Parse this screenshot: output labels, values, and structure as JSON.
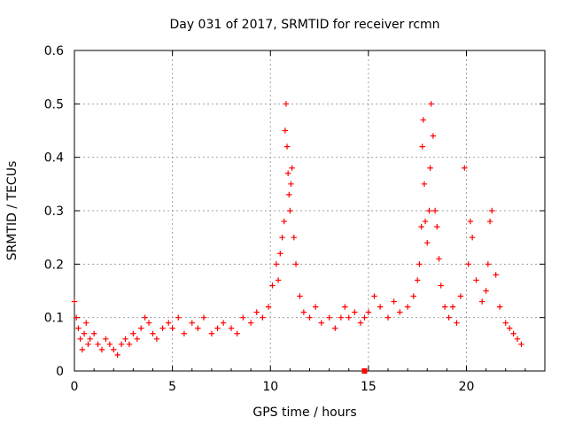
{
  "chart_data": {
    "type": "scatter",
    "title": "Day 031 of 2017, SRMTID for receiver rcmn",
    "xlabel": "GPS time / hours",
    "ylabel": "SRMTID / TECUs",
    "xlim": [
      0,
      24
    ],
    "ylim": [
      0,
      0.6
    ],
    "xticks": [
      0,
      5,
      10,
      15,
      20
    ],
    "xtick_labels": [
      "0",
      "5",
      "10",
      "15",
      "20"
    ],
    "yticks": [
      0,
      0.1,
      0.2,
      0.3,
      0.4,
      0.5,
      0.6
    ],
    "ytick_labels": [
      "0",
      "0.1",
      "0.2",
      "0.3",
      "0.4",
      "0.5",
      "0.6"
    ],
    "grid": true,
    "marker": "plus",
    "color": "#ff0000",
    "series": [
      {
        "name": "SRMTID",
        "x": [
          0.0,
          0.1,
          0.2,
          0.3,
          0.4,
          0.5,
          0.6,
          0.7,
          0.8,
          1.0,
          1.2,
          1.4,
          1.6,
          1.8,
          2.0,
          2.2,
          2.4,
          2.6,
          2.8,
          3.0,
          3.2,
          3.4,
          3.6,
          3.8,
          4.0,
          4.2,
          4.5,
          4.8,
          5.0,
          5.3,
          5.6,
          6.0,
          6.3,
          6.6,
          7.0,
          7.3,
          7.6,
          8.0,
          8.3,
          8.6,
          9.0,
          9.3,
          9.6,
          9.9,
          10.1,
          10.3,
          10.4,
          10.5,
          10.6,
          10.7,
          10.75,
          10.8,
          10.85,
          10.9,
          10.95,
          11.0,
          11.05,
          11.1,
          11.2,
          11.3,
          11.5,
          11.7,
          12.0,
          12.3,
          12.6,
          13.0,
          13.3,
          13.6,
          13.8,
          14.0,
          14.3,
          14.6,
          14.8,
          15.0,
          15.3,
          15.6,
          16.0,
          16.3,
          16.6,
          17.0,
          17.3,
          17.5,
          17.6,
          17.7,
          17.75,
          17.8,
          17.85,
          17.9,
          18.0,
          18.1,
          18.15,
          18.2,
          18.3,
          18.4,
          18.5,
          18.6,
          18.7,
          18.9,
          19.1,
          19.3,
          19.5,
          19.7,
          19.9,
          20.1,
          20.2,
          20.3,
          20.5,
          20.8,
          21.0,
          21.1,
          21.2,
          21.3,
          21.5,
          21.7,
          22.0,
          22.2,
          22.4,
          22.6,
          22.8
        ],
        "y": [
          0.13,
          0.1,
          0.08,
          0.06,
          0.04,
          0.07,
          0.09,
          0.05,
          0.06,
          0.07,
          0.05,
          0.04,
          0.06,
          0.05,
          0.04,
          0.03,
          0.05,
          0.06,
          0.05,
          0.07,
          0.06,
          0.08,
          0.1,
          0.09,
          0.07,
          0.06,
          0.08,
          0.09,
          0.08,
          0.1,
          0.07,
          0.09,
          0.08,
          0.1,
          0.07,
          0.08,
          0.09,
          0.08,
          0.07,
          0.1,
          0.09,
          0.11,
          0.1,
          0.12,
          0.16,
          0.2,
          0.17,
          0.22,
          0.25,
          0.28,
          0.45,
          0.5,
          0.42,
          0.37,
          0.33,
          0.3,
          0.35,
          0.38,
          0.25,
          0.2,
          0.14,
          0.11,
          0.1,
          0.12,
          0.09,
          0.1,
          0.08,
          0.1,
          0.12,
          0.1,
          0.11,
          0.09,
          0.1,
          0.11,
          0.14,
          0.12,
          0.1,
          0.13,
          0.11,
          0.12,
          0.14,
          0.17,
          0.2,
          0.27,
          0.42,
          0.47,
          0.35,
          0.28,
          0.24,
          0.3,
          0.38,
          0.5,
          0.44,
          0.3,
          0.27,
          0.21,
          0.16,
          0.12,
          0.1,
          0.12,
          0.09,
          0.14,
          0.38,
          0.2,
          0.28,
          0.25,
          0.17,
          0.13,
          0.15,
          0.2,
          0.28,
          0.3,
          0.18,
          0.12,
          0.09,
          0.08,
          0.07,
          0.06,
          0.05
        ]
      },
      {
        "name": "marker at axis",
        "x": [
          14.8
        ],
        "y": [
          0.0
        ]
      }
    ]
  }
}
